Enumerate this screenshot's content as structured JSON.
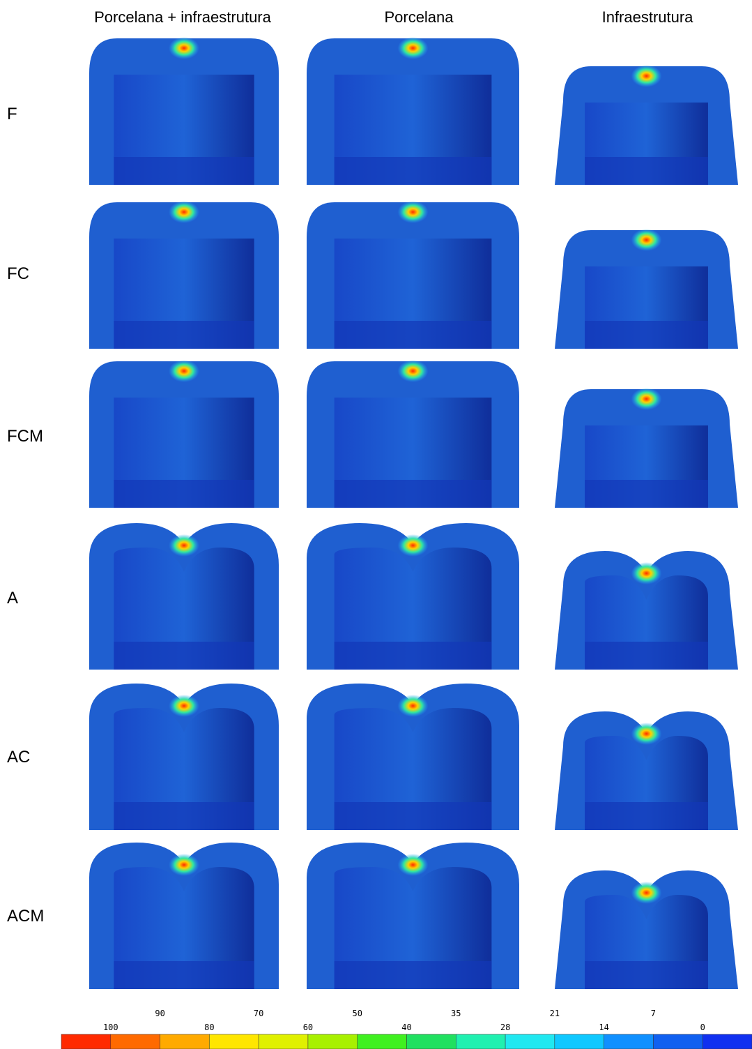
{
  "header": {
    "columns": [
      "Porcelana + infraestrutura",
      "Porcelana",
      "Infraestrutura"
    ]
  },
  "rows": [
    "F",
    "FC",
    "FCM",
    "A",
    "AC",
    "ACM"
  ],
  "scale": {
    "labels": [
      100,
      90,
      80,
      70,
      60,
      50,
      40,
      35,
      28,
      21,
      14,
      7,
      0
    ],
    "colors": [
      "#ff2a00",
      "#ff6a00",
      "#ffaa00",
      "#ffe600",
      "#e0f000",
      "#a8f000",
      "#40f020",
      "#20e060",
      "#20f0b0",
      "#20e8f0",
      "#10c8ff",
      "#1090ff",
      "#1060f0",
      "#1030f0"
    ]
  }
}
